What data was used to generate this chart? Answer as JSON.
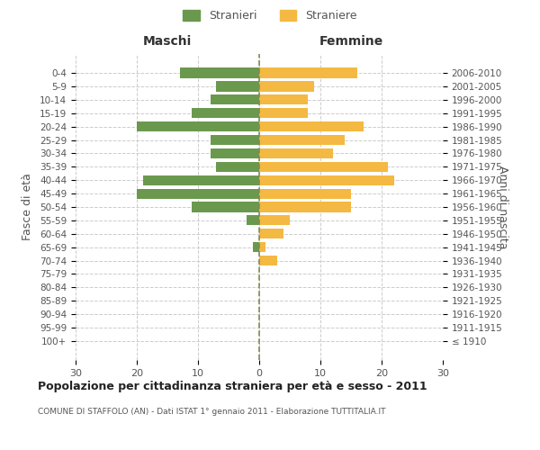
{
  "age_groups": [
    "100+",
    "95-99",
    "90-94",
    "85-89",
    "80-84",
    "75-79",
    "70-74",
    "65-69",
    "60-64",
    "55-59",
    "50-54",
    "45-49",
    "40-44",
    "35-39",
    "30-34",
    "25-29",
    "20-24",
    "15-19",
    "10-14",
    "5-9",
    "0-4"
  ],
  "birth_years": [
    "≤ 1910",
    "1911-1915",
    "1916-1920",
    "1921-1925",
    "1926-1930",
    "1931-1935",
    "1936-1940",
    "1941-1945",
    "1946-1950",
    "1951-1955",
    "1956-1960",
    "1961-1965",
    "1966-1970",
    "1971-1975",
    "1976-1980",
    "1981-1985",
    "1986-1990",
    "1991-1995",
    "1996-2000",
    "2001-2005",
    "2006-2010"
  ],
  "maschi": [
    0,
    0,
    0,
    0,
    0,
    0,
    0,
    1,
    0,
    2,
    11,
    20,
    19,
    7,
    8,
    8,
    20,
    11,
    8,
    7,
    13
  ],
  "femmine": [
    0,
    0,
    0,
    0,
    0,
    0,
    3,
    1,
    4,
    5,
    15,
    15,
    22,
    21,
    12,
    14,
    17,
    8,
    8,
    9,
    16
  ],
  "maschi_color": "#6a994e",
  "femmine_color": "#f4b942",
  "title": "Popolazione per cittadinanza straniera per età e sesso - 2011",
  "subtitle": "COMUNE DI STAFFOLO (AN) - Dati ISTAT 1° gennaio 2011 - Elaborazione TUTTITALIA.IT",
  "ylabel_left": "Fasce di età",
  "ylabel_right": "Anni di nascita",
  "xlabel_maschi": "Maschi",
  "xlabel_femmine": "Femmine",
  "legend_maschi": "Stranieri",
  "legend_femmine": "Straniere",
  "xlim": 30,
  "background_color": "#ffffff",
  "grid_color": "#cccccc"
}
